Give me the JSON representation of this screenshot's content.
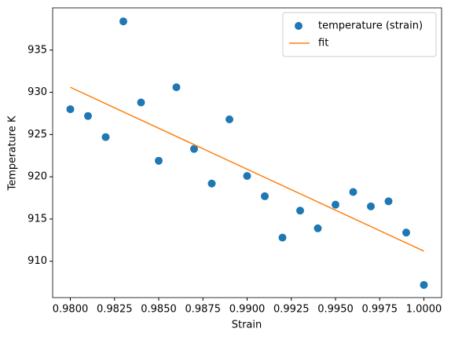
{
  "chart_data": {
    "type": "scatter",
    "xlabel": "Strain",
    "ylabel": "Temperature K",
    "xlim": [
      0.979,
      1.001
    ],
    "ylim": [
      905.7,
      940.0
    ],
    "xticks": [
      {
        "value": 0.98,
        "label": "0.9800"
      },
      {
        "value": 0.9825,
        "label": "0.9825"
      },
      {
        "value": 0.985,
        "label": "0.9850"
      },
      {
        "value": 0.9875,
        "label": "0.9875"
      },
      {
        "value": 0.99,
        "label": "0.9900"
      },
      {
        "value": 0.9925,
        "label": "0.9925"
      },
      {
        "value": 0.995,
        "label": "0.9950"
      },
      {
        "value": 0.9975,
        "label": "0.9975"
      },
      {
        "value": 1.0,
        "label": "1.0000"
      }
    ],
    "yticks": [
      910,
      915,
      920,
      925,
      930,
      935
    ],
    "legend": "upper right",
    "series": [
      {
        "name": "temperature (strain)",
        "type": "scatter",
        "color": "#1f77b4",
        "x": [
          0.98,
          0.981,
          0.982,
          0.983,
          0.984,
          0.985,
          0.986,
          0.987,
          0.988,
          0.989,
          0.99,
          0.991,
          0.992,
          0.993,
          0.994,
          0.995,
          0.996,
          0.997,
          0.998,
          0.999,
          1.0
        ],
        "values": [
          928.0,
          927.2,
          924.7,
          938.4,
          928.8,
          921.9,
          930.6,
          923.3,
          919.2,
          926.8,
          920.1,
          917.7,
          912.8,
          916.0,
          913.9,
          916.7,
          918.2,
          916.5,
          917.1,
          913.4,
          907.2
        ]
      },
      {
        "name": "fit",
        "type": "line",
        "color": "#ff7f0e",
        "x": [
          0.98,
          1.0
        ],
        "values": [
          930.6,
          911.2
        ]
      }
    ]
  }
}
